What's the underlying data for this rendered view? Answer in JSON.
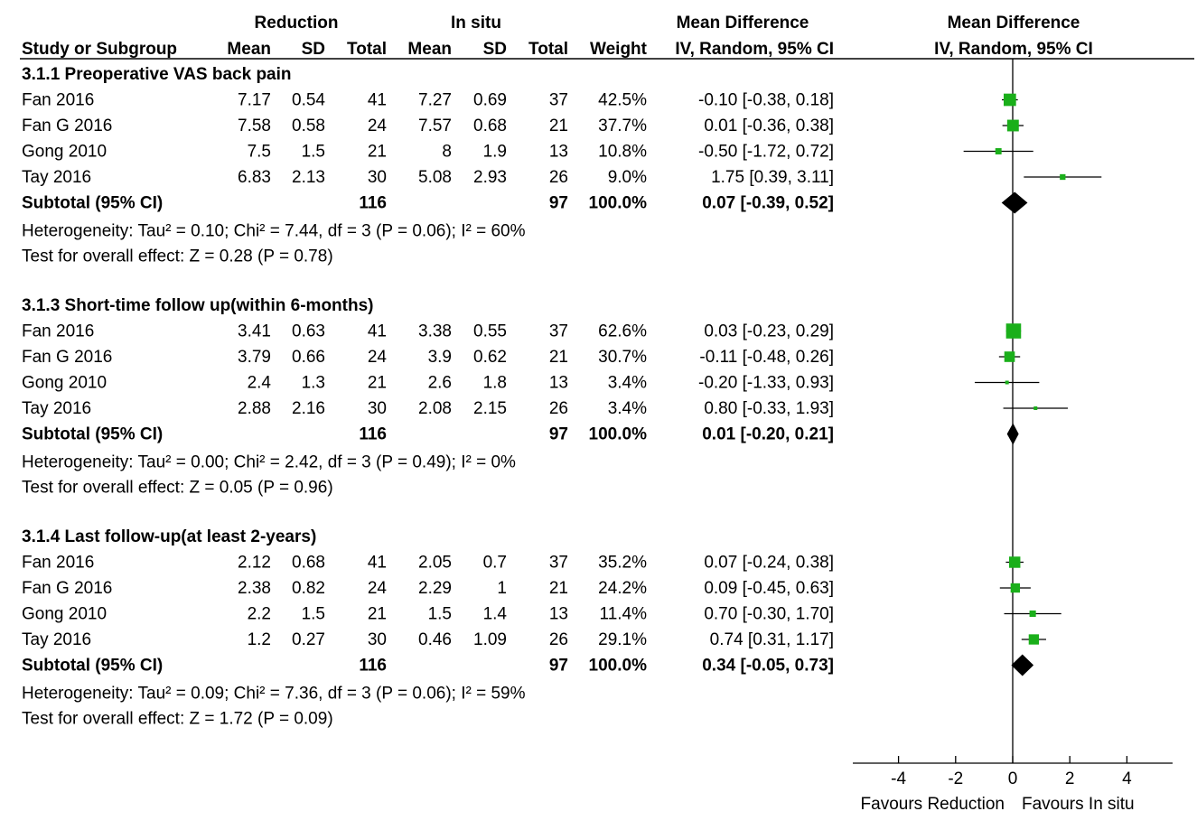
{
  "chart_data": {
    "type": "forest",
    "header": {
      "group1": "Reduction",
      "group2": "In situ",
      "effect_col_title": "Mean Difference",
      "effect_col_method": "IV, Random, 95% CI",
      "plot_title": "Mean Difference",
      "plot_method": "IV, Random, 95% CI",
      "study_col": "Study or Subgroup",
      "mean": "Mean",
      "sd": "SD",
      "total": "Total",
      "weight": "Weight"
    },
    "subgroups": [
      {
        "title": "3.1.1 Preoperative VAS back pain",
        "studies": [
          {
            "name": "Fan 2016",
            "mean1": "7.17",
            "sd1": "0.54",
            "n1": "41",
            "mean2": "7.27",
            "sd2": "0.69",
            "n2": "37",
            "weight": "42.5%",
            "ci_text": "-0.10 [-0.38, 0.18]",
            "md": -0.1,
            "lo": -0.38,
            "hi": 0.18,
            "w": 42.5
          },
          {
            "name": "Fan G 2016",
            "mean1": "7.58",
            "sd1": "0.58",
            "n1": "24",
            "mean2": "7.57",
            "sd2": "0.68",
            "n2": "21",
            "weight": "37.7%",
            "ci_text": "0.01 [-0.36, 0.38]",
            "md": 0.01,
            "lo": -0.36,
            "hi": 0.38,
            "w": 37.7
          },
          {
            "name": "Gong 2010",
            "mean1": "7.5",
            "sd1": "1.5",
            "n1": "21",
            "mean2": "8",
            "sd2": "1.9",
            "n2": "13",
            "weight": "10.8%",
            "ci_text": "-0.50 [-1.72, 0.72]",
            "md": -0.5,
            "lo": -1.72,
            "hi": 0.72,
            "w": 10.8
          },
          {
            "name": "Tay 2016",
            "mean1": "6.83",
            "sd1": "2.13",
            "n1": "30",
            "mean2": "5.08",
            "sd2": "2.93",
            "n2": "26",
            "weight": "9.0%",
            "ci_text": "1.75 [0.39, 3.11]",
            "md": 1.75,
            "lo": 0.39,
            "hi": 3.11,
            "w": 9.0
          }
        ],
        "subtotal": {
          "label": "Subtotal (95% CI)",
          "n1": "116",
          "n2": "97",
          "weight": "100.0%",
          "ci_text": "0.07 [-0.39, 0.52]",
          "md": 0.07,
          "lo": -0.39,
          "hi": 0.52
        },
        "heterogeneity": "Heterogeneity: Tau² = 0.10; Chi² = 7.44, df = 3 (P = 0.06); I² = 60%",
        "overall": "Test for overall effect: Z = 0.28 (P = 0.78)"
      },
      {
        "title": "3.1.3 Short-time follow up(within 6-months)",
        "studies": [
          {
            "name": "Fan 2016",
            "mean1": "3.41",
            "sd1": "0.63",
            "n1": "41",
            "mean2": "3.38",
            "sd2": "0.55",
            "n2": "37",
            "weight": "62.6%",
            "ci_text": "0.03 [-0.23, 0.29]",
            "md": 0.03,
            "lo": -0.23,
            "hi": 0.29,
            "w": 62.6
          },
          {
            "name": "Fan G 2016",
            "mean1": "3.79",
            "sd1": "0.66",
            "n1": "24",
            "mean2": "3.9",
            "sd2": "0.62",
            "n2": "21",
            "weight": "30.7%",
            "ci_text": "-0.11 [-0.48, 0.26]",
            "md": -0.11,
            "lo": -0.48,
            "hi": 0.26,
            "w": 30.7
          },
          {
            "name": "Gong 2010",
            "mean1": "2.4",
            "sd1": "1.3",
            "n1": "21",
            "mean2": "2.6",
            "sd2": "1.8",
            "n2": "13",
            "weight": "3.4%",
            "ci_text": "-0.20 [-1.33, 0.93]",
            "md": -0.2,
            "lo": -1.33,
            "hi": 0.93,
            "w": 3.4
          },
          {
            "name": "Tay 2016",
            "mean1": "2.88",
            "sd1": "2.16",
            "n1": "30",
            "mean2": "2.08",
            "sd2": "2.15",
            "n2": "26",
            "weight": "3.4%",
            "ci_text": "0.80 [-0.33, 1.93]",
            "md": 0.8,
            "lo": -0.33,
            "hi": 1.93,
            "w": 3.4
          }
        ],
        "subtotal": {
          "label": "Subtotal (95% CI)",
          "n1": "116",
          "n2": "97",
          "weight": "100.0%",
          "ci_text": "0.01 [-0.20, 0.21]",
          "md": 0.01,
          "lo": -0.2,
          "hi": 0.21
        },
        "heterogeneity": "Heterogeneity: Tau² = 0.00; Chi² = 2.42, df = 3 (P = 0.49); I² = 0%",
        "overall": "Test for overall effect: Z = 0.05 (P = 0.96)"
      },
      {
        "title": "3.1.4 Last follow-up(at least 2-years)",
        "studies": [
          {
            "name": "Fan 2016",
            "mean1": "2.12",
            "sd1": "0.68",
            "n1": "41",
            "mean2": "2.05",
            "sd2": "0.7",
            "n2": "37",
            "weight": "35.2%",
            "ci_text": "0.07 [-0.24, 0.38]",
            "md": 0.07,
            "lo": -0.24,
            "hi": 0.38,
            "w": 35.2
          },
          {
            "name": "Fan G 2016",
            "mean1": "2.38",
            "sd1": "0.82",
            "n1": "24",
            "mean2": "2.29",
            "sd2": "1",
            "n2": "21",
            "weight": "24.2%",
            "ci_text": "0.09 [-0.45, 0.63]",
            "md": 0.09,
            "lo": -0.45,
            "hi": 0.63,
            "w": 24.2
          },
          {
            "name": "Gong 2010",
            "mean1": "2.2",
            "sd1": "1.5",
            "n1": "21",
            "mean2": "1.5",
            "sd2": "1.4",
            "n2": "13",
            "weight": "11.4%",
            "ci_text": "0.70 [-0.30, 1.70]",
            "md": 0.7,
            "lo": -0.3,
            "hi": 1.7,
            "w": 11.4
          },
          {
            "name": "Tay 2016",
            "mean1": "1.2",
            "sd1": "0.27",
            "n1": "30",
            "mean2": "0.46",
            "sd2": "1.09",
            "n2": "26",
            "weight": "29.1%",
            "ci_text": "0.74 [0.31, 1.17]",
            "md": 0.74,
            "lo": 0.31,
            "hi": 1.17,
            "w": 29.1
          }
        ],
        "subtotal": {
          "label": "Subtotal (95% CI)",
          "n1": "116",
          "n2": "97",
          "weight": "100.0%",
          "ci_text": "0.34 [-0.05, 0.73]",
          "md": 0.34,
          "lo": -0.05,
          "hi": 0.73
        },
        "heterogeneity": "Heterogeneity: Tau² = 0.09; Chi² = 7.36, df = 3 (P = 0.06); I² = 59%",
        "overall": "Test for overall effect: Z = 1.72 (P = 0.09)"
      }
    ],
    "axis": {
      "xlim": [
        -5.6,
        5.6
      ],
      "ticks": [
        -4,
        -2,
        0,
        2,
        4
      ],
      "tick_labels": [
        "-4",
        "-2",
        "0",
        "2",
        "4"
      ],
      "favours_left": "Favours Reduction",
      "favours_right": "Favours In situ"
    },
    "colors": {
      "study_marker": "#1aaf1a",
      "summary_marker": "#000000",
      "line": "#000000"
    }
  }
}
